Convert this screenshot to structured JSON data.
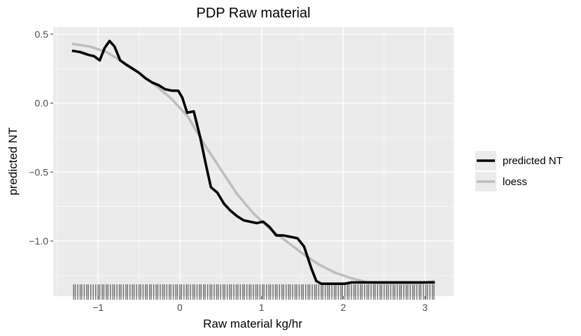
{
  "chart_data": {
    "type": "line",
    "title": "PDP Raw material",
    "xlabel": "Raw material kg/hr",
    "ylabel": "predicted NT",
    "xlim": [
      -1.55,
      3.35
    ],
    "ylim": [
      -1.4,
      0.55
    ],
    "x_ticks": [
      -1,
      0,
      1,
      2,
      3
    ],
    "x_tick_labels": [
      "−1",
      "0",
      "1",
      "2",
      "3"
    ],
    "y_ticks": [
      -1.0,
      -0.5,
      0.0,
      0.5
    ],
    "y_tick_labels": [
      "−1.0",
      "−0.5",
      "0.0",
      "0.5"
    ],
    "grid": true,
    "panel_background": "#ebebeb",
    "legend": {
      "position": "right"
    },
    "series": [
      {
        "name": "predicted NT",
        "color": "#000000",
        "x": [
          -1.32,
          -1.22,
          -1.12,
          -1.05,
          -0.98,
          -0.92,
          -0.86,
          -0.8,
          -0.73,
          -0.66,
          -0.58,
          -0.5,
          -0.42,
          -0.34,
          -0.26,
          -0.18,
          -0.1,
          -0.02,
          0.03,
          0.09,
          0.17,
          0.25,
          0.32,
          0.38,
          0.46,
          0.54,
          0.62,
          0.7,
          0.78,
          0.86,
          0.94,
          1.02,
          1.1,
          1.18,
          1.27,
          1.36,
          1.44,
          1.52,
          1.61,
          1.67,
          1.73,
          1.79,
          1.86,
          1.94,
          2.02,
          2.1,
          2.2,
          2.4,
          2.7,
          3.0,
          3.12
        ],
        "y": [
          0.38,
          0.37,
          0.35,
          0.34,
          0.31,
          0.4,
          0.45,
          0.41,
          0.31,
          0.28,
          0.25,
          0.22,
          0.18,
          0.15,
          0.13,
          0.1,
          0.09,
          0.09,
          0.04,
          -0.07,
          -0.06,
          -0.25,
          -0.45,
          -0.61,
          -0.65,
          -0.73,
          -0.78,
          -0.82,
          -0.85,
          -0.86,
          -0.87,
          -0.86,
          -0.9,
          -0.96,
          -0.96,
          -0.97,
          -0.98,
          -1.04,
          -1.2,
          -1.29,
          -1.31,
          -1.31,
          -1.31,
          -1.31,
          -1.31,
          -1.3,
          -1.3,
          -1.3,
          -1.3,
          -1.3,
          -1.3
        ]
      },
      {
        "name": "loess",
        "color": "#bebebe",
        "x": [
          -1.32,
          -1.1,
          -0.9,
          -0.7,
          -0.5,
          -0.3,
          -0.1,
          0.1,
          0.3,
          0.5,
          0.7,
          0.9,
          1.1,
          1.3,
          1.5,
          1.7,
          1.9,
          2.1,
          2.3,
          2.5,
          2.7,
          2.9,
          3.12
        ],
        "y": [
          0.43,
          0.41,
          0.37,
          0.3,
          0.22,
          0.13,
          0.03,
          -0.1,
          -0.3,
          -0.48,
          -0.66,
          -0.8,
          -0.91,
          -1.0,
          -1.09,
          -1.17,
          -1.23,
          -1.27,
          -1.3,
          -1.31,
          -1.31,
          -1.31,
          -1.29
        ]
      }
    ],
    "rug": {
      "y": -1.37,
      "x": [
        -1.3,
        -1.28,
        -1.25,
        -1.22,
        -1.2,
        -1.17,
        -1.14,
        -1.12,
        -1.09,
        -1.06,
        -1.03,
        -1.0,
        -0.98,
        -0.95,
        -0.93,
        -0.9,
        -0.88,
        -0.85,
        -0.82,
        -0.8,
        -0.77,
        -0.74,
        -0.72,
        -0.69,
        -0.66,
        -0.64,
        -0.61,
        -0.58,
        -0.56,
        -0.53,
        -0.5,
        -0.48,
        -0.45,
        -0.42,
        -0.4,
        -0.37,
        -0.35,
        -0.32,
        -0.29,
        -0.27,
        -0.24,
        -0.21,
        -0.19,
        -0.16,
        -0.13,
        -0.11,
        -0.08,
        -0.05,
        -0.03,
        0.0,
        0.02,
        0.05,
        0.08,
        0.1,
        0.13,
        0.16,
        0.18,
        0.21,
        0.24,
        0.26,
        0.29,
        0.31,
        0.34,
        0.37,
        0.39,
        0.42,
        0.45,
        0.47,
        0.5,
        0.53,
        0.55,
        0.58,
        0.61,
        0.63,
        0.66,
        0.69,
        0.71,
        0.74,
        0.77,
        0.79,
        0.82,
        0.85,
        0.87,
        0.9,
        0.93,
        0.95,
        0.98,
        1.01,
        1.03,
        1.06,
        1.09,
        1.11,
        1.14,
        1.17,
        1.19,
        1.22,
        1.25,
        1.27,
        1.3,
        1.33,
        1.35,
        1.38,
        1.41,
        1.43,
        1.46,
        1.49,
        1.51,
        1.54,
        1.57,
        1.59,
        1.62,
        1.65,
        1.67,
        1.7,
        1.73,
        1.75,
        1.78,
        1.81,
        1.83,
        1.86,
        1.89,
        1.91,
        1.94,
        1.97,
        1.99,
        2.02,
        2.05,
        2.07,
        2.1,
        2.13,
        2.15,
        2.18,
        2.21,
        2.23,
        2.26,
        2.29,
        2.31,
        2.34,
        2.37,
        2.39,
        2.42,
        2.45,
        2.47,
        2.5,
        2.53,
        2.55,
        2.58,
        2.61,
        2.63,
        2.66,
        2.69,
        2.71,
        2.74,
        2.77,
        2.79,
        2.82,
        2.85,
        2.87,
        2.9,
        2.93,
        2.95,
        2.98,
        3.01,
        3.03,
        3.06,
        3.09,
        3.11
      ]
    }
  }
}
